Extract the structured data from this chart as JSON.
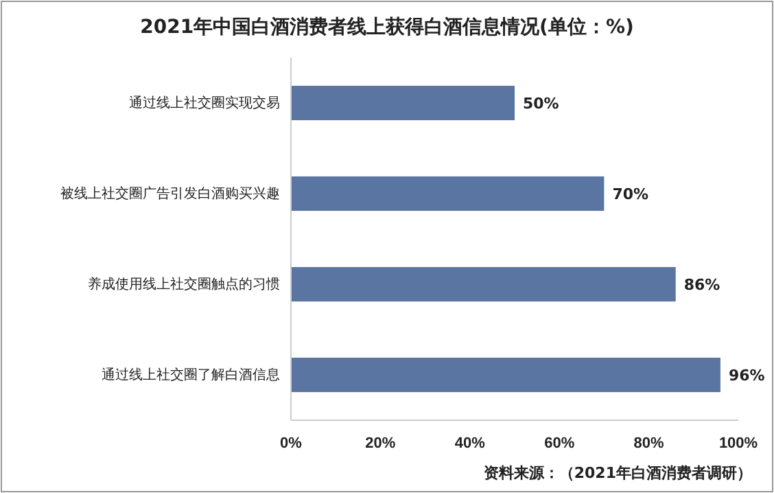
{
  "chart_data": {
    "type": "bar",
    "orientation": "horizontal",
    "title": "2021年中国白酒消费者线上获得白酒信息情况(单位：%)",
    "categories": [
      "通过线上社交圈实现交易",
      "被线上社交圈广告引发白酒购买兴趣",
      "养成使用线上社交圈触点的习惯",
      "通过线上社交圈了解白酒信息"
    ],
    "values": [
      50,
      70,
      86,
      96
    ],
    "color": "#5b75a3",
    "value_labels": [
      "50%",
      "70%",
      "86%",
      "96%"
    ],
    "xlim": [
      0,
      100
    ],
    "xticks": [
      {
        "value": 0,
        "label": "0%"
      },
      {
        "value": 20,
        "label": "20%"
      },
      {
        "value": 40,
        "label": "40%"
      },
      {
        "value": 60,
        "label": "60%"
      },
      {
        "value": 80,
        "label": "80%"
      },
      {
        "value": 100,
        "label": "100%"
      }
    ],
    "annotations": [
      "资料来源：（2021年白酒消费者调研）"
    ]
  }
}
